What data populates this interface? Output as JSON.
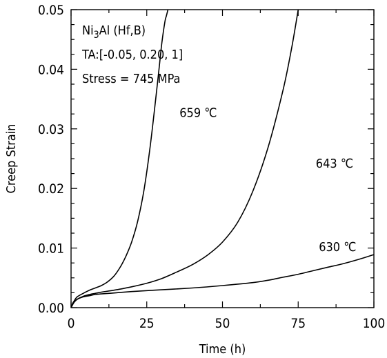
{
  "chart_data": {
    "type": "line",
    "xlabel": "Time (h)",
    "ylabel": "Creep Strain",
    "xlim": [
      0,
      100
    ],
    "ylim": [
      0,
      0.05
    ],
    "x_ticks": [
      0,
      25,
      50,
      75,
      100
    ],
    "x_tick_labels": [
      "0",
      "25",
      "50",
      "75",
      "100"
    ],
    "y_ticks": [
      0,
      0.01,
      0.02,
      0.03,
      0.04,
      0.05
    ],
    "y_tick_labels": [
      "0.00",
      "0.01",
      "0.02",
      "0.03",
      "0.04",
      "0.05"
    ],
    "grid": false,
    "annotation_lines": [
      "Ni3Al (Hf,B)",
      "TA:[-0.05, 0.20, 1]",
      "Stress = 745 MPa"
    ],
    "series": [
      {
        "name": "659 ℃",
        "x": [
          0,
          0.5,
          1,
          2,
          4,
          6,
          8,
          10,
          12,
          14,
          16,
          18,
          20,
          22,
          24,
          26,
          28,
          29,
          30,
          31,
          31.5,
          32
        ],
        "y": [
          0,
          0.0007,
          0.0011,
          0.0018,
          0.0024,
          0.0029,
          0.0033,
          0.0037,
          0.0043,
          0.0052,
          0.0066,
          0.0085,
          0.011,
          0.0145,
          0.0195,
          0.0265,
          0.0352,
          0.0398,
          0.0445,
          0.048,
          0.049,
          0.05
        ]
      },
      {
        "name": "643 ℃",
        "x": [
          0,
          1,
          2,
          4,
          6,
          8,
          10,
          15,
          20,
          25,
          30,
          35,
          40,
          45,
          50,
          55,
          60,
          65,
          70,
          73,
          75
        ],
        "y": [
          0,
          0.0009,
          0.0014,
          0.0019,
          0.0022,
          0.0024,
          0.0026,
          0.003,
          0.0035,
          0.0041,
          0.0049,
          0.006,
          0.0072,
          0.0088,
          0.011,
          0.0143,
          0.0195,
          0.0268,
          0.0365,
          0.044,
          0.05
        ]
      },
      {
        "name": "630 ℃",
        "x": [
          0,
          1,
          2,
          4,
          6,
          8,
          10,
          15,
          20,
          30,
          40,
          50,
          60,
          65,
          70,
          75,
          80,
          85,
          90,
          95,
          100
        ],
        "y": [
          0,
          0.0009,
          0.0014,
          0.0018,
          0.002,
          0.0022,
          0.0023,
          0.0025,
          0.0027,
          0.003,
          0.0033,
          0.0037,
          0.0042,
          0.0046,
          0.0051,
          0.0056,
          0.0062,
          0.0068,
          0.0074,
          0.0081,
          0.0089
        ]
      }
    ],
    "series_labels": [
      {
        "text": "659 ℃",
        "x": 42,
        "y": 0.032
      },
      {
        "text": "643 ℃",
        "x": 87,
        "y": 0.0235
      },
      {
        "text": "630 ℃",
        "x": 88,
        "y": 0.0095
      }
    ]
  }
}
